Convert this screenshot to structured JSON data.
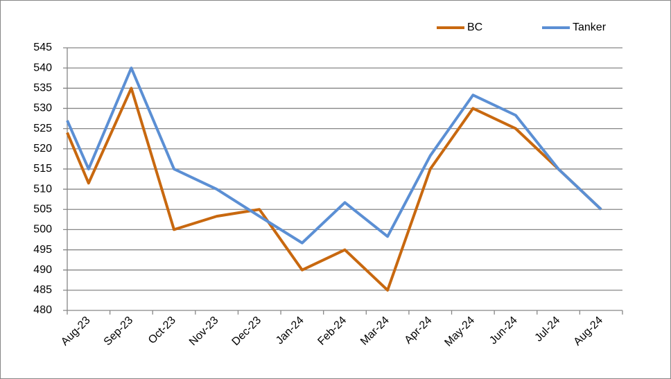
{
  "chart_data": {
    "type": "line",
    "categories": [
      null,
      "Aug-23",
      "Sep-23",
      "Oct-23",
      "Nov-23",
      "Dec-23",
      "Jan-24",
      "Feb-24",
      "Mar-24",
      "Apr-24",
      "May-24",
      "Jun-24",
      "Jul-24",
      "Aug-24"
    ],
    "series": [
      {
        "name": "BC",
        "color": "#c8680f",
        "values": [
          524,
          511.5,
          535,
          500,
          503.3,
          505,
          490,
          495,
          485,
          515,
          530,
          525,
          515,
          505
        ]
      },
      {
        "name": "Tanker",
        "color": "#5b8fd4",
        "values": [
          527,
          515,
          540,
          515,
          510,
          503.3,
          496.7,
          506.7,
          498.3,
          518.3,
          533.3,
          528.3,
          515,
          505
        ]
      }
    ],
    "ylim": [
      480,
      545
    ],
    "yticks": [
      480,
      485,
      490,
      495,
      500,
      505,
      510,
      515,
      520,
      525,
      530,
      535,
      540,
      545
    ],
    "grid": true,
    "legend": "top-right"
  }
}
